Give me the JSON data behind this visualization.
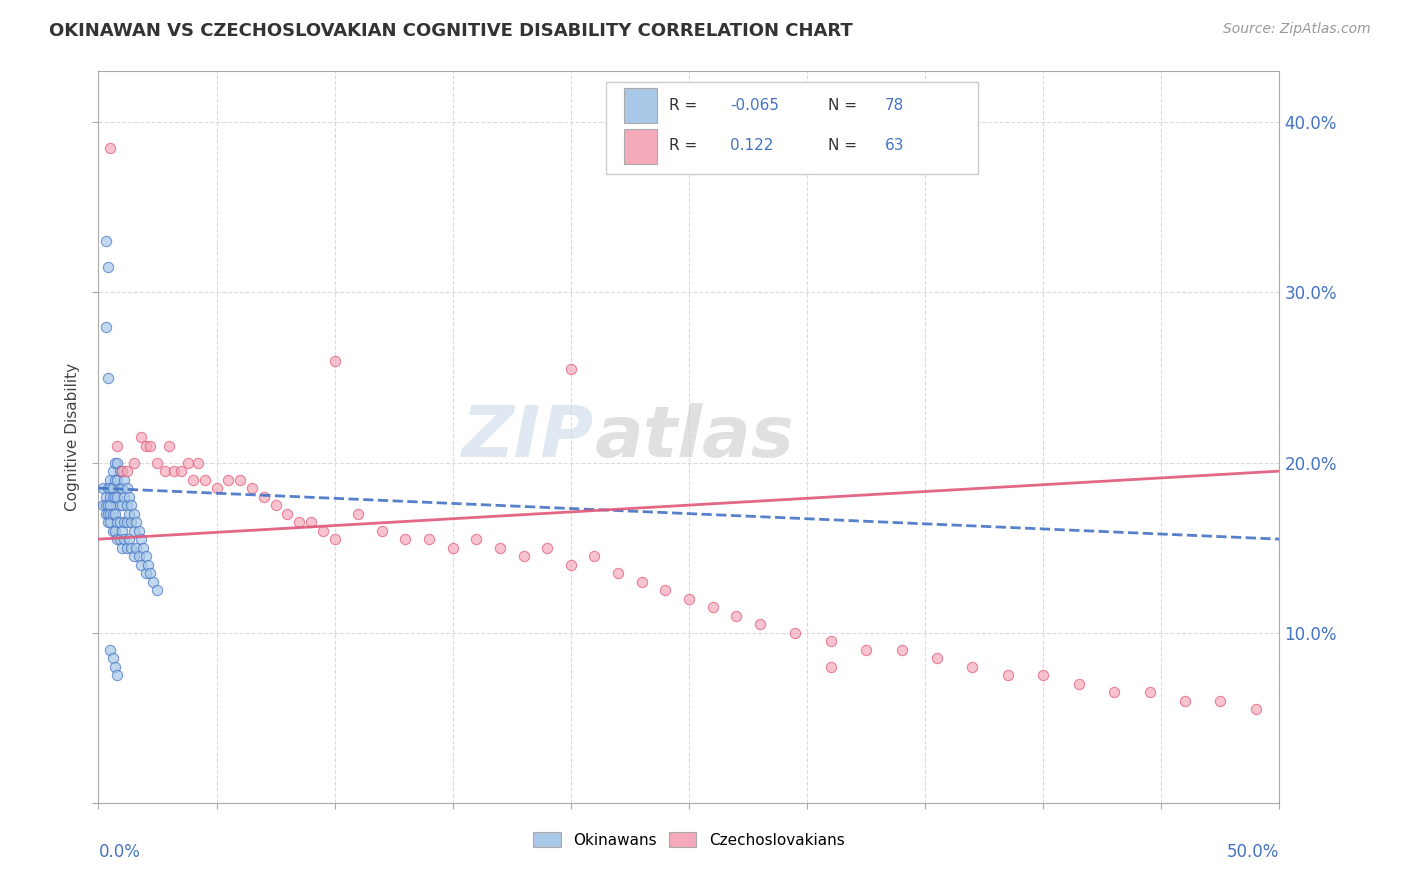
{
  "title": "OKINAWAN VS CZECHOSLOVAKIAN COGNITIVE DISABILITY CORRELATION CHART",
  "source": "Source: ZipAtlas.com",
  "ylabel": "Cognitive Disability",
  "right_yticks": [
    "",
    "10.0%",
    "20.0%",
    "30.0%",
    "40.0%"
  ],
  "right_ytick_vals": [
    0.0,
    0.1,
    0.2,
    0.3,
    0.4
  ],
  "xmin": 0.0,
  "xmax": 0.5,
  "ymin": 0.0,
  "ymax": 0.43,
  "color_blue": "#A8C8E8",
  "color_blue_dark": "#4472C4",
  "color_pink": "#F4AABB",
  "color_pink_dark": "#E05878",
  "watermark_zip": "ZIP",
  "watermark_atlas": "atlas",
  "background": "#FFFFFF",
  "grid_color": "#CCCCCC",
  "okinawan_x": [
    0.002,
    0.002,
    0.003,
    0.003,
    0.003,
    0.004,
    0.004,
    0.004,
    0.004,
    0.005,
    0.005,
    0.005,
    0.005,
    0.005,
    0.005,
    0.006,
    0.006,
    0.006,
    0.006,
    0.006,
    0.007,
    0.007,
    0.007,
    0.007,
    0.007,
    0.008,
    0.008,
    0.008,
    0.008,
    0.008,
    0.009,
    0.009,
    0.009,
    0.009,
    0.009,
    0.01,
    0.01,
    0.01,
    0.01,
    0.01,
    0.011,
    0.011,
    0.011,
    0.011,
    0.012,
    0.012,
    0.012,
    0.012,
    0.013,
    0.013,
    0.013,
    0.014,
    0.014,
    0.014,
    0.015,
    0.015,
    0.015,
    0.016,
    0.016,
    0.017,
    0.017,
    0.018,
    0.018,
    0.019,
    0.02,
    0.02,
    0.021,
    0.022,
    0.023,
    0.025,
    0.003,
    0.004,
    0.005,
    0.006,
    0.007,
    0.008,
    0.003,
    0.004
  ],
  "okinawan_y": [
    0.185,
    0.175,
    0.18,
    0.175,
    0.17,
    0.185,
    0.175,
    0.17,
    0.165,
    0.19,
    0.185,
    0.18,
    0.175,
    0.17,
    0.165,
    0.195,
    0.185,
    0.18,
    0.17,
    0.16,
    0.2,
    0.19,
    0.18,
    0.17,
    0.16,
    0.2,
    0.19,
    0.18,
    0.165,
    0.155,
    0.195,
    0.185,
    0.175,
    0.165,
    0.155,
    0.195,
    0.185,
    0.175,
    0.16,
    0.15,
    0.19,
    0.18,
    0.165,
    0.155,
    0.185,
    0.175,
    0.165,
    0.15,
    0.18,
    0.17,
    0.155,
    0.175,
    0.165,
    0.15,
    0.17,
    0.16,
    0.145,
    0.165,
    0.15,
    0.16,
    0.145,
    0.155,
    0.14,
    0.15,
    0.145,
    0.135,
    0.14,
    0.135,
    0.13,
    0.125,
    0.33,
    0.315,
    0.09,
    0.085,
    0.08,
    0.075,
    0.28,
    0.25
  ],
  "czech_x": [
    0.005,
    0.008,
    0.01,
    0.012,
    0.015,
    0.018,
    0.02,
    0.022,
    0.025,
    0.028,
    0.03,
    0.032,
    0.035,
    0.038,
    0.04,
    0.042,
    0.045,
    0.05,
    0.055,
    0.06,
    0.065,
    0.07,
    0.075,
    0.08,
    0.085,
    0.09,
    0.095,
    0.1,
    0.11,
    0.12,
    0.13,
    0.14,
    0.15,
    0.16,
    0.17,
    0.18,
    0.19,
    0.2,
    0.21,
    0.22,
    0.23,
    0.24,
    0.25,
    0.26,
    0.27,
    0.28,
    0.295,
    0.31,
    0.325,
    0.34,
    0.355,
    0.37,
    0.385,
    0.4,
    0.415,
    0.43,
    0.445,
    0.46,
    0.475,
    0.49,
    0.1,
    0.2,
    0.31
  ],
  "czech_y": [
    0.385,
    0.21,
    0.195,
    0.195,
    0.2,
    0.215,
    0.21,
    0.21,
    0.2,
    0.195,
    0.21,
    0.195,
    0.195,
    0.2,
    0.19,
    0.2,
    0.19,
    0.185,
    0.19,
    0.19,
    0.185,
    0.18,
    0.175,
    0.17,
    0.165,
    0.165,
    0.16,
    0.155,
    0.17,
    0.16,
    0.155,
    0.155,
    0.15,
    0.155,
    0.15,
    0.145,
    0.15,
    0.14,
    0.145,
    0.135,
    0.13,
    0.125,
    0.12,
    0.115,
    0.11,
    0.105,
    0.1,
    0.095,
    0.09,
    0.09,
    0.085,
    0.08,
    0.075,
    0.075,
    0.07,
    0.065,
    0.065,
    0.06,
    0.06,
    0.055,
    0.26,
    0.255,
    0.08
  ],
  "ok_trend_x": [
    0.0,
    0.5
  ],
  "ok_trend_y": [
    0.185,
    0.155
  ],
  "cz_trend_x": [
    0.0,
    0.5
  ],
  "cz_trend_y": [
    0.155,
    0.195
  ]
}
